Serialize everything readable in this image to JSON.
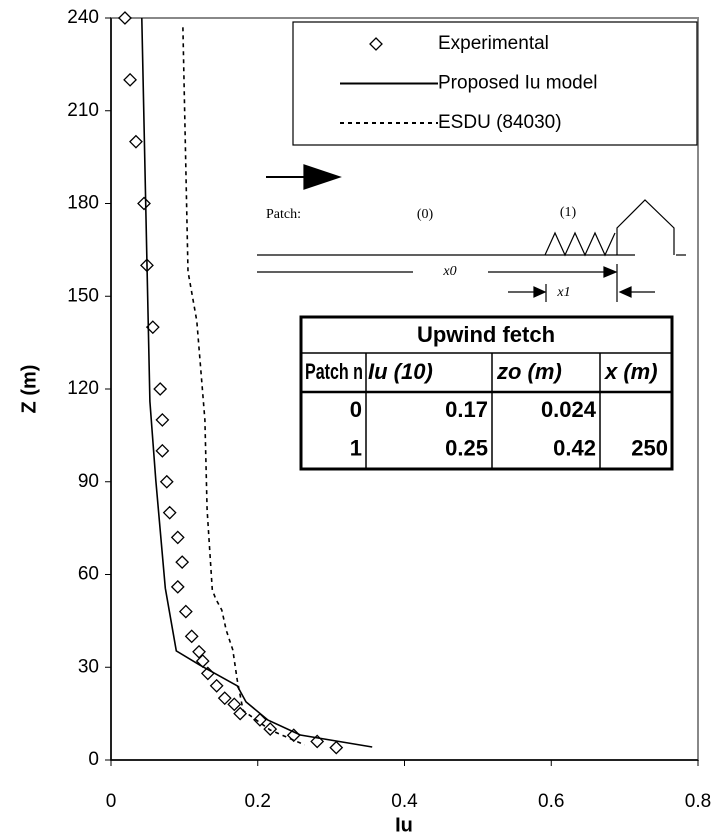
{
  "chart_data": {
    "type": "line",
    "xlabel": "Iu",
    "ylabel": "Z (m)",
    "xlim": [
      0,
      0.8
    ],
    "ylim": [
      0,
      240
    ],
    "xticks": [
      0,
      0.2,
      0.4,
      0.6,
      0.8
    ],
    "yticks": [
      0,
      30,
      60,
      90,
      120,
      150,
      180,
      210,
      240
    ],
    "grid": false,
    "series": [
      {
        "name": "Experimental",
        "style": "markers",
        "color": "#000000",
        "x": [
          0.019,
          0.026,
          0.034,
          0.045,
          0.049,
          0.057,
          0.067,
          0.07,
          0.07,
          0.076,
          0.08,
          0.091,
          0.097,
          0.091,
          0.102,
          0.11,
          0.12,
          0.125,
          0.132,
          0.144,
          0.155,
          0.168,
          0.176,
          0.203,
          0.217,
          0.249,
          0.281,
          0.307
        ],
        "values": [
          240,
          220,
          200,
          180,
          160,
          140,
          120,
          110,
          100,
          90,
          80,
          72,
          64,
          56,
          48,
          40,
          35,
          32,
          28,
          24,
          20,
          18,
          15,
          13,
          10,
          8,
          6,
          4
        ]
      },
      {
        "name": "Proposed Iu model",
        "style": "solid",
        "color": "#000000",
        "x": [
          0.042,
          0.049,
          0.053,
          0.061,
          0.074,
          0.089,
          0.121,
          0.172,
          0.184,
          0.214,
          0.258,
          0.356
        ],
        "values": [
          240,
          160,
          116,
          90.5,
          55.6,
          35.3,
          30.7,
          24,
          18.8,
          12.9,
          8.1,
          4.2
        ]
      },
      {
        "name": "ESDU (84030)",
        "style": "dotted",
        "color": "#000000",
        "x": [
          0.098,
          0.105,
          0.117,
          0.128,
          0.131,
          0.138,
          0.143,
          0.151,
          0.157,
          0.166,
          0.172,
          0.18,
          0.217,
          0.264
        ],
        "values": [
          237,
          158,
          142,
          110,
          81,
          55,
          52,
          48.5,
          42,
          35.6,
          25.9,
          16,
          9.7,
          4.9
        ]
      }
    ],
    "diagram": {
      "patch": "Patch:",
      "patch0": "(0)",
      "patch1": "(1)",
      "x0": "x0",
      "x1": "x1"
    },
    "table": {
      "title": "Upwind fetch",
      "header": [
        "Patch n",
        "Iu (10)",
        "zo (m)",
        "x (m)"
      ],
      "rows": [
        [
          "0",
          "0.17",
          "0.024",
          null
        ],
        [
          "1",
          "0.25",
          "0.42",
          "250"
        ]
      ]
    }
  }
}
